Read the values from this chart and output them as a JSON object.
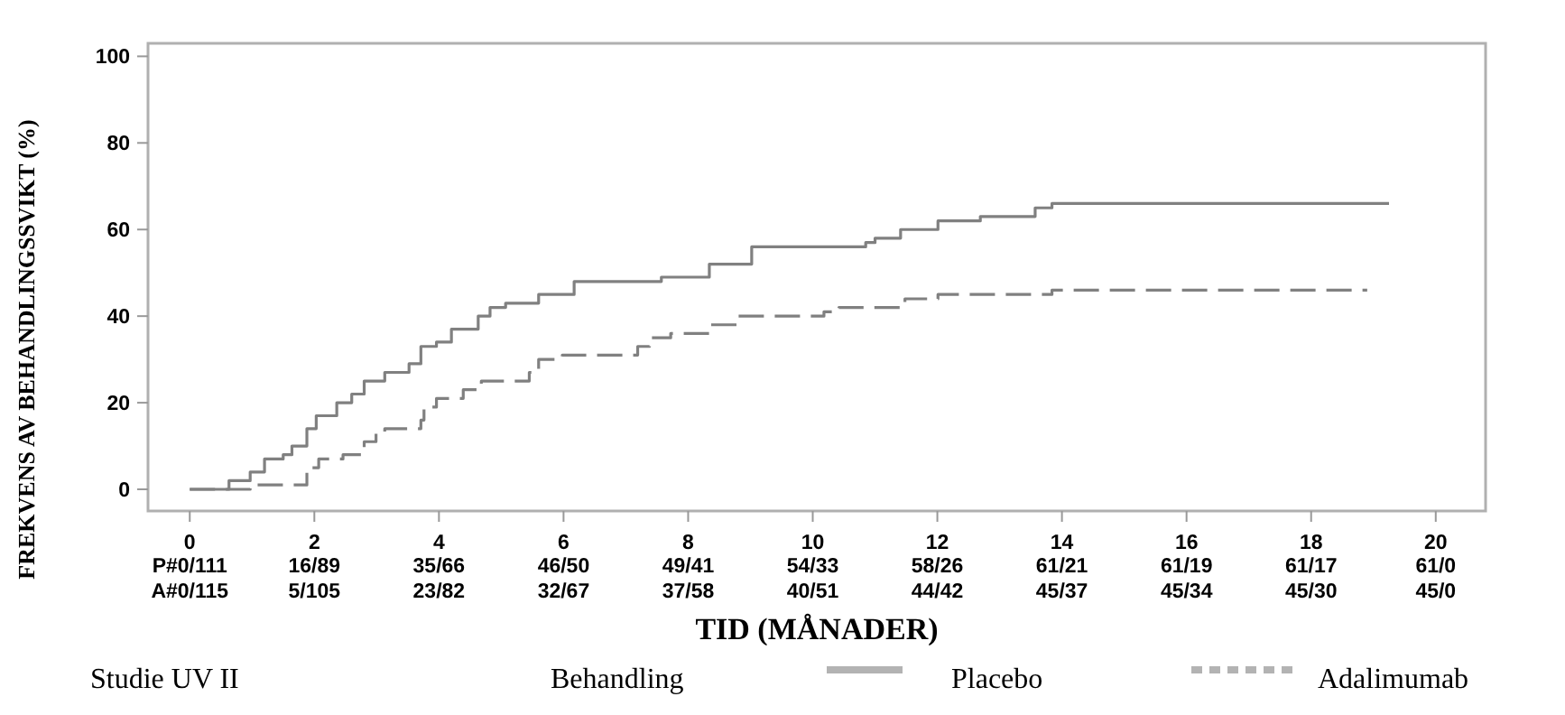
{
  "chart_data": {
    "type": "step",
    "xlabel": "TID (MÅNADER)",
    "ylabel": "FREKVENS AV BEHANDLINGSSVIKT (%)",
    "legend_title": "Behandling",
    "legend": "bottom",
    "xlim": [
      -0.67,
      20.8
    ],
    "ylim": [
      -5,
      103
    ],
    "xticks": [
      0,
      2,
      4,
      6,
      8,
      10,
      12,
      14,
      16,
      18,
      20
    ],
    "yticks": [
      0,
      20,
      40,
      60,
      80,
      100
    ],
    "grid": false,
    "series": [
      {
        "name": "Placebo",
        "color": "#808080",
        "line_style": "solid",
        "x": [
          0,
          0.63,
          0.97,
          1.2,
          1.5,
          1.64,
          1.88,
          2.03,
          2.36,
          2.6,
          2.8,
          3.13,
          3.52,
          3.71,
          3.96,
          4.2,
          4.63,
          4.82,
          5.07,
          5.6,
          6.17,
          7.57,
          8.34,
          9.02,
          10.85,
          11.0,
          11.41,
          12.01,
          12.69,
          13.57,
          13.84,
          19.25
        ],
        "values": [
          0,
          2,
          4,
          7,
          8,
          10,
          14,
          17,
          20,
          22,
          25,
          27,
          29,
          33,
          34,
          37,
          40,
          42,
          43,
          45,
          48,
          49,
          52,
          56,
          57,
          58,
          60,
          62,
          63,
          65,
          66,
          66
        ]
      },
      {
        "name": "Adalimumab",
        "color": "#808080",
        "line_style": "dashed",
        "x": [
          0,
          0.97,
          1.88,
          2.07,
          2.46,
          2.8,
          2.99,
          3.13,
          3.71,
          3.76,
          3.96,
          4.39,
          4.68,
          5.45,
          5.6,
          5.98,
          7.19,
          7.38,
          7.72,
          8.34,
          8.78,
          10.18,
          10.42,
          11.48,
          12.01,
          13.84,
          18.9
        ],
        "values": [
          0,
          1,
          5,
          7,
          8,
          11,
          13,
          14,
          16,
          19,
          21,
          23,
          25,
          27,
          30,
          31,
          33,
          35,
          36,
          38,
          40,
          41,
          42,
          44,
          45,
          46,
          46
        ]
      }
    ],
    "annotations": [
      "Studie UV II",
      "P#0/111",
      "16/89",
      "35/66",
      "46/50",
      "49/41",
      "54/33",
      "58/26",
      "61/21",
      "61/19",
      "61/17",
      "61/0",
      "A#0/115",
      "5/105",
      "23/82",
      "32/67",
      "37/58",
      "40/51",
      "44/42",
      "45/37",
      "45/34",
      "45/30",
      "45/0"
    ]
  }
}
